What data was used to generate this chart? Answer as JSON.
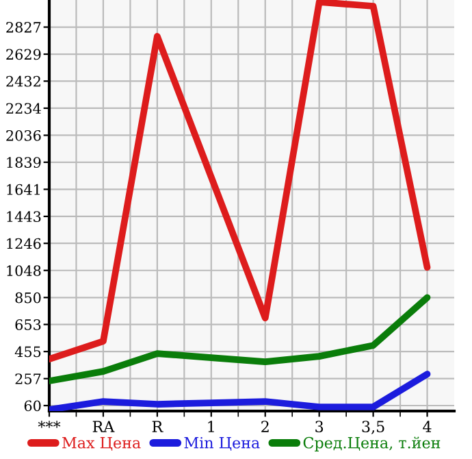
{
  "chart_data": {
    "type": "line",
    "categories": [
      "***",
      "RA",
      "R",
      "1",
      "2",
      "3",
      "3,5",
      "4"
    ],
    "series": [
      {
        "name": "Max Цена",
        "color": "#dd1c1c",
        "values": [
          400,
          530,
          2760,
          1730,
          700,
          3010,
          2980,
          1070
        ]
      },
      {
        "name": "Min Цена",
        "color": "#1c1cdd",
        "values": [
          30,
          90,
          70,
          80,
          90,
          50,
          50,
          290
        ]
      },
      {
        "name": "Сред.Цена, т.йен",
        "color": "#0a7d0a",
        "values": [
          240,
          310,
          440,
          410,
          380,
          420,
          500,
          850
        ]
      }
    ],
    "ylim": [
      20,
      3025
    ],
    "yticks": [
      60,
      257,
      455,
      653,
      850,
      1048,
      1246,
      1443,
      1641,
      1839,
      2036,
      2234,
      2432,
      2629,
      2827
    ],
    "grid": true,
    "legend": "bottom",
    "marker": "none",
    "line_style": "solid"
  }
}
